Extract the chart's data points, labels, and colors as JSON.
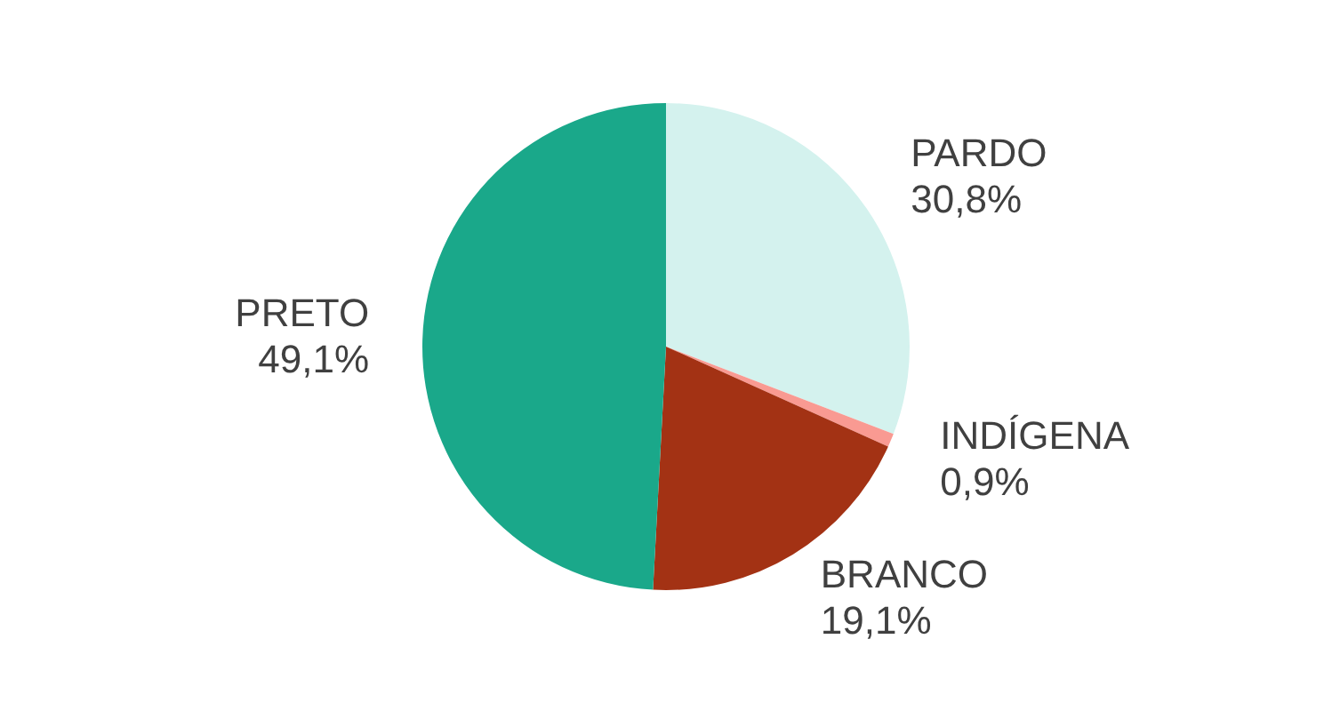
{
  "chart_data": {
    "type": "pie",
    "categories": [
      "PARDO",
      "INDÍGENA",
      "BRANCO",
      "PRETO"
    ],
    "values": [
      30.8,
      0.9,
      19.1,
      49.1
    ],
    "value_labels": [
      "30,8%",
      "0,9%",
      "19,1%",
      "49,1%"
    ],
    "colors": [
      "#d4f2ee",
      "#f99a92",
      "#a33214",
      "#1aa88a"
    ],
    "legend": false
  }
}
